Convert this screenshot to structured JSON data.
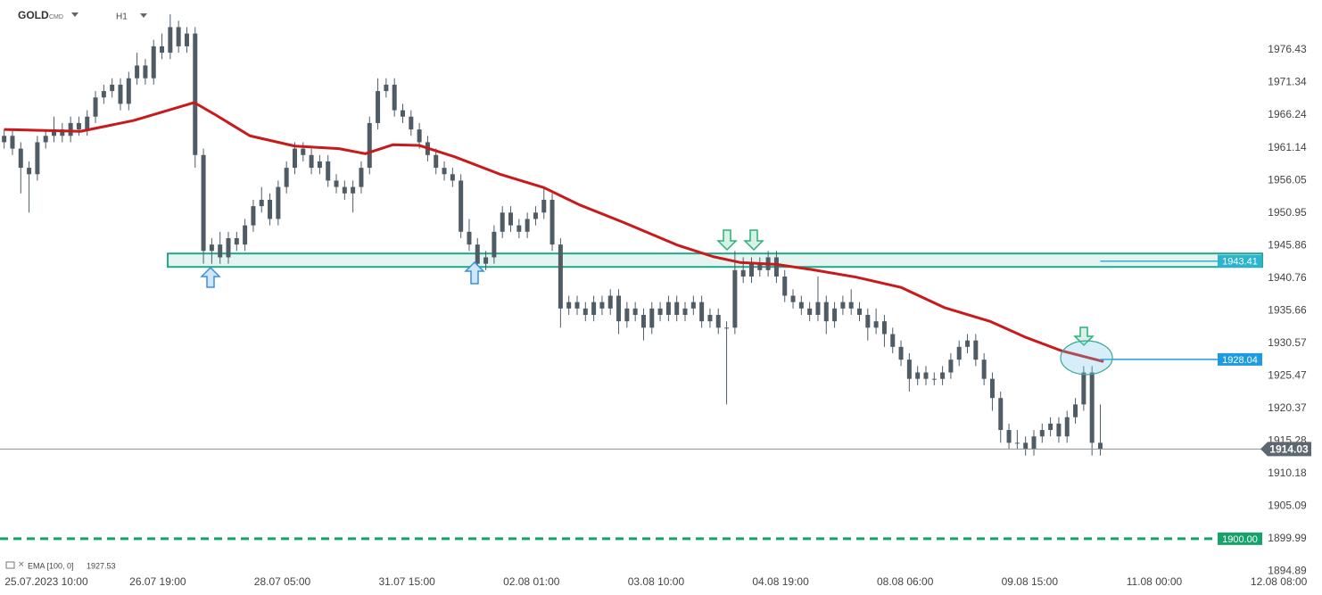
{
  "chart_data": {
    "type": "candlestick",
    "symbol": "GOLD",
    "symbol_suffix": "CMD",
    "timeframe": "H1",
    "candle_color": "#4f5c66",
    "ohlc": [
      [
        1962,
        1964,
        1961,
        1963
      ],
      [
        1963,
        1964,
        1960,
        1961
      ],
      [
        1961,
        1962,
        1954,
        1958
      ],
      [
        1958,
        1959,
        1951,
        1957
      ],
      [
        1957,
        1963,
        1956,
        1962
      ],
      [
        1962,
        1964,
        1961,
        1963
      ],
      [
        1963,
        1966,
        1962,
        1964
      ],
      [
        1964,
        1965,
        1962,
        1963
      ],
      [
        1963,
        1966,
        1962,
        1965
      ],
      [
        1965,
        1966,
        1963,
        1964
      ],
      [
        1964,
        1967,
        1963,
        1966
      ],
      [
        1966,
        1970,
        1965,
        1969
      ],
      [
        1969,
        1971,
        1968,
        1970
      ],
      [
        1970,
        1972,
        1969,
        1971
      ],
      [
        1971,
        1972,
        1967,
        1968
      ],
      [
        1968,
        1973,
        1967,
        1972
      ],
      [
        1972,
        1976,
        1971,
        1974
      ],
      [
        1974,
        1975,
        1971,
        1972
      ],
      [
        1972,
        1978,
        1971,
        1977
      ],
      [
        1977,
        1979,
        1975,
        1976
      ],
      [
        1976,
        1982,
        1975,
        1980
      ],
      [
        1980,
        1981,
        1976,
        1977
      ],
      [
        1977,
        1980,
        1976,
        1979
      ],
      [
        1979,
        1980,
        1958,
        1960
      ],
      [
        1960,
        1961,
        1943,
        1945
      ],
      [
        1945,
        1947,
        1943,
        1946
      ],
      [
        1946,
        1948,
        1943,
        1944
      ],
      [
        1944,
        1948,
        1943,
        1947
      ],
      [
        1947,
        1948,
        1945,
        1946
      ],
      [
        1946,
        1950,
        1945,
        1949
      ],
      [
        1949,
        1953,
        1948,
        1952
      ],
      [
        1952,
        1955,
        1951,
        1953
      ],
      [
        1953,
        1954,
        1949,
        1950
      ],
      [
        1950,
        1956,
        1949,
        1955
      ],
      [
        1955,
        1959,
        1954,
        1958
      ],
      [
        1958,
        1962,
        1957,
        1961
      ],
      [
        1961,
        1962,
        1959,
        1960
      ],
      [
        1960,
        1961,
        1957,
        1958
      ],
      [
        1958,
        1960,
        1957,
        1959
      ],
      [
        1959,
        1960,
        1955,
        1956
      ],
      [
        1956,
        1957,
        1954,
        1955
      ],
      [
        1955,
        1956,
        1953,
        1954
      ],
      [
        1954,
        1956,
        1951,
        1955
      ],
      [
        1955,
        1959,
        1954,
        1958
      ],
      [
        1958,
        1966,
        1957,
        1965
      ],
      [
        1965,
        1972,
        1964,
        1970
      ],
      [
        1970,
        1972,
        1969,
        1971
      ],
      [
        1971,
        1972,
        1966,
        1967
      ],
      [
        1967,
        1968,
        1965,
        1966
      ],
      [
        1966,
        1967,
        1963,
        1964
      ],
      [
        1964,
        1965,
        1961,
        1962
      ],
      [
        1962,
        1963,
        1959,
        1960
      ],
      [
        1960,
        1961,
        1957,
        1958
      ],
      [
        1958,
        1959,
        1956,
        1957
      ],
      [
        1957,
        1958,
        1955,
        1956
      ],
      [
        1956,
        1957,
        1947,
        1948
      ],
      [
        1948,
        1950,
        1945,
        1946
      ],
      [
        1946,
        1947,
        1942,
        1943
      ],
      [
        1943,
        1945,
        1942,
        1944
      ],
      [
        1944,
        1949,
        1943,
        1948
      ],
      [
        1948,
        1952,
        1947,
        1951
      ],
      [
        1951,
        1952,
        1948,
        1949
      ],
      [
        1949,
        1950,
        1947,
        1948
      ],
      [
        1948,
        1951,
        1947,
        1950
      ],
      [
        1950,
        1952,
        1949,
        1951
      ],
      [
        1951,
        1955,
        1950,
        1953
      ],
      [
        1953,
        1954,
        1945,
        1946
      ],
      [
        1946,
        1947,
        1933,
        1936
      ],
      [
        1936,
        1938,
        1935,
        1937
      ],
      [
        1937,
        1938,
        1935,
        1936
      ],
      [
        1936,
        1937,
        1934,
        1935
      ],
      [
        1935,
        1938,
        1934,
        1937
      ],
      [
        1937,
        1938,
        1935,
        1936
      ],
      [
        1936,
        1939,
        1935,
        1938
      ],
      [
        1938,
        1939,
        1932,
        1934
      ],
      [
        1934,
        1937,
        1933,
        1936
      ],
      [
        1936,
        1937,
        1934,
        1935
      ],
      [
        1935,
        1936,
        1931,
        1933
      ],
      [
        1933,
        1937,
        1932,
        1936
      ],
      [
        1936,
        1937,
        1934,
        1935
      ],
      [
        1935,
        1938,
        1934,
        1937
      ],
      [
        1937,
        1938,
        1934,
        1935
      ],
      [
        1935,
        1937,
        1934,
        1936
      ],
      [
        1936,
        1938,
        1935,
        1937
      ],
      [
        1937,
        1938,
        1933,
        1934
      ],
      [
        1934,
        1936,
        1933,
        1935
      ],
      [
        1935,
        1936,
        1932,
        1933
      ],
      [
        1933,
        1934,
        1921,
        1933
      ],
      [
        1933,
        1945,
        1932,
        1942
      ],
      [
        1942,
        1944,
        1940,
        1941
      ],
      [
        1941,
        1944,
        1940,
        1943
      ],
      [
        1943,
        1944,
        1941,
        1942
      ],
      [
        1942,
        1945,
        1941,
        1944
      ],
      [
        1944,
        1945,
        1940,
        1941
      ],
      [
        1941,
        1942,
        1937,
        1938
      ],
      [
        1938,
        1939,
        1936,
        1937
      ],
      [
        1937,
        1938,
        1935,
        1936
      ],
      [
        1936,
        1937,
        1934,
        1935
      ],
      [
        1935,
        1941,
        1934,
        1937
      ],
      [
        1937,
        1938,
        1932,
        1934
      ],
      [
        1934,
        1937,
        1933,
        1936
      ],
      [
        1936,
        1938,
        1935,
        1937
      ],
      [
        1937,
        1939,
        1935,
        1936
      ],
      [
        1936,
        1937,
        1934,
        1935
      ],
      [
        1935,
        1936,
        1931,
        1933
      ],
      [
        1933,
        1936,
        1932,
        1934
      ],
      [
        1934,
        1935,
        1930,
        1932
      ],
      [
        1932,
        1933,
        1929,
        1930
      ],
      [
        1930,
        1931,
        1927,
        1928
      ],
      [
        1928,
        1929,
        1923,
        1925
      ],
      [
        1925,
        1927,
        1924,
        1926
      ],
      [
        1926,
        1927,
        1924,
        1925
      ],
      [
        1925,
        1926,
        1924,
        1925
      ],
      [
        1925,
        1927,
        1924,
        1926
      ],
      [
        1926,
        1929,
        1925,
        1928
      ],
      [
        1928,
        1931,
        1927,
        1930
      ],
      [
        1930,
        1932,
        1929,
        1931
      ],
      [
        1931,
        1932,
        1927,
        1928
      ],
      [
        1928,
        1929,
        1924,
        1925
      ],
      [
        1925,
        1926,
        1920,
        1922
      ],
      [
        1922,
        1923,
        1915,
        1917
      ],
      [
        1917,
        1918,
        1914,
        1915
      ],
      [
        1915,
        1917,
        1914,
        1915
      ],
      [
        1915,
        1916,
        1913,
        1914
      ],
      [
        1914,
        1917,
        1913,
        1916
      ],
      [
        1916,
        1918,
        1915,
        1917
      ],
      [
        1917,
        1919,
        1916,
        1918
      ],
      [
        1918,
        1919,
        1915,
        1916
      ],
      [
        1916,
        1920,
        1915,
        1919
      ],
      [
        1919,
        1922,
        1918,
        1921
      ],
      [
        1921,
        1927,
        1920,
        1926
      ],
      [
        1926,
        1927,
        1913,
        1915
      ],
      [
        1915,
        1921,
        1913,
        1914
      ]
    ],
    "ema": {
      "name": "EMA [100, 0]",
      "legend_value": 1927.53,
      "color": "#c8191b",
      "x": [
        0,
        9.2,
        15.6,
        22.9,
        25.3,
        29.6,
        35,
        40.3,
        43.5,
        46.8,
        50,
        54.3,
        59.7,
        65,
        69.3,
        74.7,
        81.1,
        85.4,
        88.6,
        93,
        97.2,
        102.6,
        108,
        113.3,
        118.7,
        123,
        127.3,
        132.4
      ],
      "values": [
        1964.0,
        1963.7,
        1965.4,
        1968.2,
        1966.4,
        1963.0,
        1961.4,
        1961.0,
        1960.2,
        1961.6,
        1961.5,
        1959.7,
        1957.0,
        1954.9,
        1952.2,
        1949.4,
        1945.9,
        1944.1,
        1943.2,
        1942.9,
        1942.1,
        1940.9,
        1939.3,
        1936.1,
        1934.0,
        1931.5,
        1929.4,
        1927.7
      ]
    },
    "zone": {
      "x": 19.7,
      "values": [
        1942.5,
        1944.6
      ],
      "color": "#20a88a"
    },
    "levels": {
      "values": [
        1943.41,
        1928.04,
        1914.03,
        1900
      ],
      "value_labels": [
        "1943.41",
        "1928.04",
        "1914.03",
        "1900.00"
      ],
      "colors": [
        "#2bb3cf",
        "#1e9be0",
        "#5c6770",
        "#16a36a"
      ],
      "styles": [
        "ray",
        "ray",
        "price",
        "dashed"
      ]
    },
    "xlim": [
      -0.5,
      151.5
    ],
    "xticks": [
      {
        "value": 3.5,
        "label": "25.07.2023 10:00"
      },
      {
        "value": 18.5,
        "label": "26.07 19:00"
      },
      {
        "value": 33.5,
        "label": "28.07 05:00"
      },
      {
        "value": 48.5,
        "label": "31.07 15:00"
      },
      {
        "value": 63.5,
        "label": "02.08 01:00"
      },
      {
        "value": 78.5,
        "label": "03.08 10:00"
      },
      {
        "value": 93.5,
        "label": "04.08 19:00"
      },
      {
        "value": 108.5,
        "label": "08.08 06:00"
      },
      {
        "value": 123.5,
        "label": "09.08 15:00"
      },
      {
        "value": 138.5,
        "label": "11.08 00:00"
      },
      {
        "value": 153.5,
        "label": "12.08 08:00"
      }
    ],
    "ylim": [
      1893.57,
      1984.24
    ],
    "yticks": [
      1976.43,
      1971.34,
      1966.24,
      1961.14,
      1956.05,
      1950.95,
      1945.86,
      1940.76,
      1935.66,
      1930.57,
      1925.47,
      1920.37,
      1915.28,
      1910.18,
      1905.09,
      1899.99,
      1894.89
    ],
    "grid": false
  }
}
